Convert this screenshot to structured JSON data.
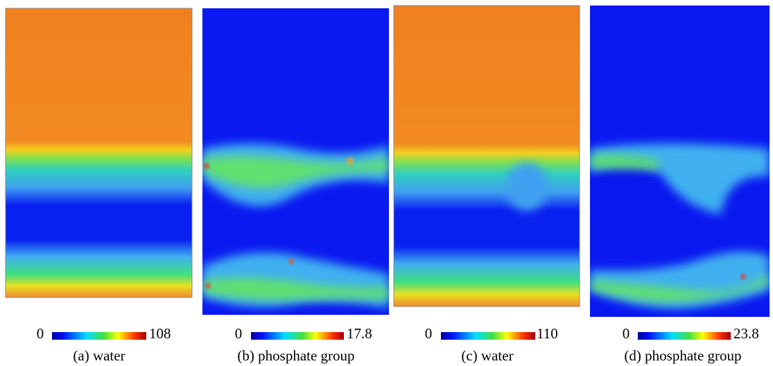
{
  "panels": [
    {
      "caption": "(a) water",
      "colorbar": {
        "min": 0,
        "max": 108
      }
    },
    {
      "caption": "(b) phosphate group",
      "colorbar": {
        "min": 0,
        "max": 17.8
      }
    },
    {
      "caption": "(c) water",
      "colorbar": {
        "min": 0,
        "max": 110
      }
    },
    {
      "caption": "(d) phosphate group",
      "colorbar": {
        "min": 0,
        "max": 23.8
      }
    }
  ]
}
